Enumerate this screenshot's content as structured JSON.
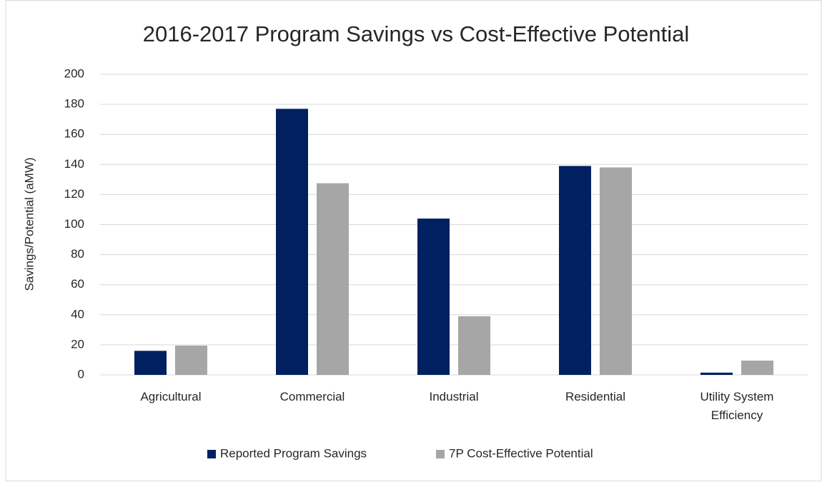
{
  "chart_data": {
    "type": "bar",
    "title": "2016-2017 Program Savings vs Cost-Effective Potential",
    "y_label": "Savings/Potential (aMW)",
    "categories": [
      "Agricultural",
      "Commercial",
      "Industrial",
      "Residential",
      "Utility System Efficiency"
    ],
    "series": [
      {
        "name": "Reported Program Savings",
        "color": "#002060",
        "values": [
          16,
          177,
          104,
          139,
          1.5
        ]
      },
      {
        "name": "7P Cost-Effective Potential",
        "color": "#a6a6a6",
        "values": [
          19.5,
          127.5,
          39,
          138,
          9.5
        ]
      }
    ],
    "ylim": [
      0,
      200
    ],
    "yticks": [
      0,
      20,
      40,
      60,
      80,
      100,
      120,
      140,
      160,
      180,
      200
    ],
    "grid": true,
    "legend": "bottom"
  }
}
